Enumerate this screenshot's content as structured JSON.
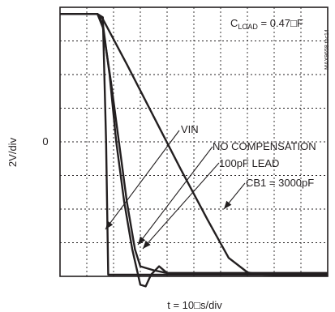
{
  "chart_data": {
    "type": "line",
    "title": "",
    "ylabel": "2V/div",
    "xlabel": "t = 10□s/div",
    "y_zero_label": "0",
    "load_note": "Cₗₒₐᴅ",
    "load_label_prefix": "C",
    "load_label_sub": "LOAD",
    "load_label_suffix": " = 0.47□F",
    "part_id": "MAX9658 toc14",
    "grid": true,
    "x_divisions": 10,
    "y_divisions": 8,
    "xlim": [
      0,
      10
    ],
    "ylim": [
      -4,
      4
    ],
    "series": [
      {
        "name": "VIN",
        "x": [
          0,
          1.4,
          1.6,
          1.72,
          1.8,
          10
        ],
        "y": [
          3.8,
          3.8,
          3.7,
          0,
          -3.95,
          -3.95
        ]
      },
      {
        "name": "NO COMPENSATION",
        "x": [
          0,
          1.4,
          1.6,
          1.85,
          2.1,
          2.4,
          2.7,
          3.0,
          3.2,
          3.4,
          3.7,
          4.0,
          10
        ],
        "y": [
          3.8,
          3.8,
          3.5,
          2.0,
          0,
          -1.8,
          -3.2,
          -4.25,
          -4.3,
          -3.95,
          -3.7,
          -3.9,
          -3.9
        ]
      },
      {
        "name": "100pF LEAD",
        "x": [
          0,
          1.4,
          1.6,
          1.9,
          2.2,
          2.5,
          2.8,
          3.0,
          3.2,
          3.5,
          4.0,
          10
        ],
        "y": [
          3.8,
          3.8,
          3.4,
          1.8,
          0,
          -1.8,
          -3.2,
          -3.7,
          -3.75,
          -3.82,
          -3.9,
          -3.9
        ]
      },
      {
        "name": "CB1 = 3000pF",
        "x": [
          0,
          1.4,
          1.6,
          2.5,
          3.5,
          4.5,
          5.5,
          6.3,
          7.0,
          7.3,
          7.6,
          8.0,
          8.5,
          10
        ],
        "y": [
          3.8,
          3.8,
          3.65,
          2.3,
          0.75,
          -0.8,
          -2.3,
          -3.45,
          -3.88,
          -3.93,
          -3.95,
          -3.96,
          -3.97,
          -3.97
        ]
      }
    ],
    "annotations": [
      {
        "text": "VIN",
        "series": "VIN"
      },
      {
        "text": "NO COMPENSATION",
        "series": "NO COMPENSATION"
      },
      {
        "text": "100pF LEAD",
        "series": "100pF LEAD"
      },
      {
        "text": "CB1 = 3000pF",
        "series": "CB1 = 3000pF"
      }
    ]
  }
}
